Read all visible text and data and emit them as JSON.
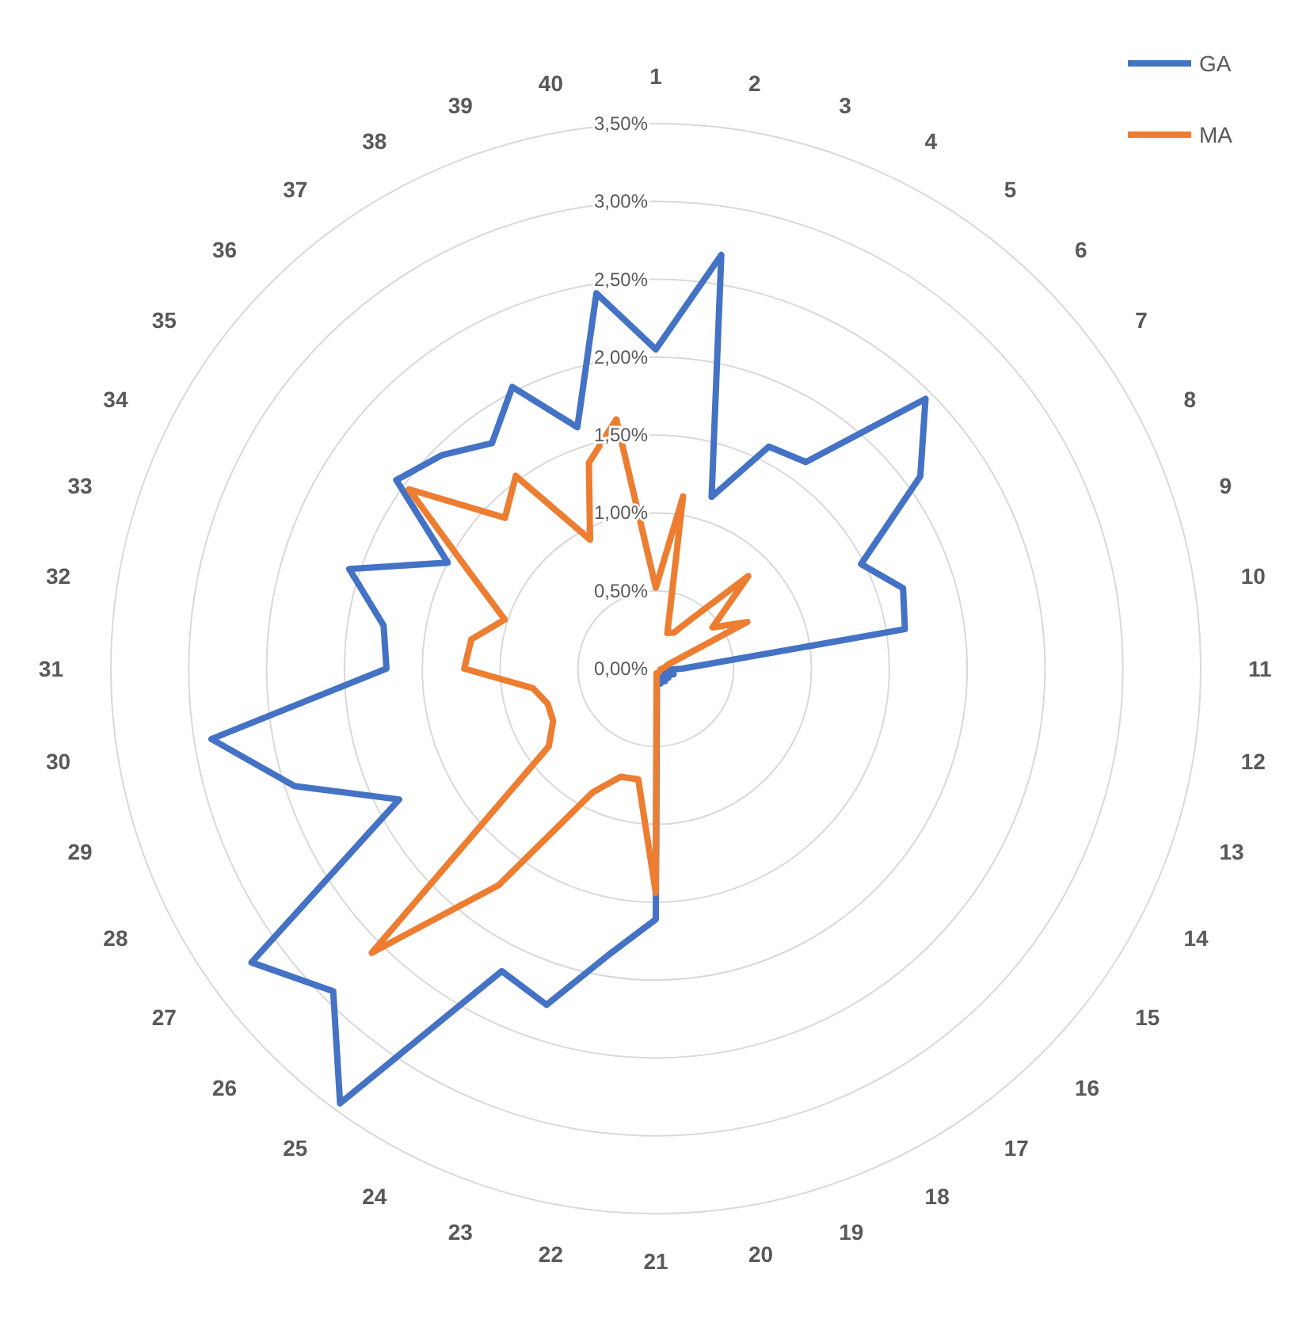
{
  "chart_data": {
    "type": "radar",
    "categories": [
      "1",
      "2",
      "3",
      "4",
      "5",
      "6",
      "7",
      "8",
      "9",
      "10",
      "11",
      "12",
      "13",
      "14",
      "15",
      "16",
      "17",
      "18",
      "19",
      "20",
      "21",
      "22",
      "23",
      "24",
      "25",
      "26",
      "27",
      "28",
      "29",
      "30",
      "31",
      "32",
      "33",
      "34",
      "35",
      "36",
      "37",
      "38",
      "39",
      "40"
    ],
    "ylim": [
      0,
      3.5
    ],
    "yticks": [
      {
        "value": 0,
        "label": "0,00%"
      },
      {
        "value": 0.5,
        "label": "0,50%"
      },
      {
        "value": 1,
        "label": "1,00%"
      },
      {
        "value": 1.5,
        "label": "1,50%"
      },
      {
        "value": 2,
        "label": "2,00%"
      },
      {
        "value": 2.5,
        "label": "2,50%"
      },
      {
        "value": 3,
        "label": "3,00%"
      },
      {
        "value": 3.5,
        "label": "3,50%"
      }
    ],
    "grid": true,
    "legend": "top right",
    "series": [
      {
        "name": "GA",
        "color": "#4472c4",
        "values": [
          2.05,
          2.69,
          1.16,
          1.6,
          1.64,
          2.45,
          2.1,
          1.48,
          1.67,
          1.62,
          0.17,
          0.06,
          0.12,
          0.05,
          0.1,
          0.05,
          0.1,
          0.05,
          0.1,
          0.05,
          1.61,
          1.85,
          2.27,
          2.18,
          3.45,
          2.93,
          3.21,
          1.85,
          2.44,
          2.89,
          1.73,
          1.77,
          2.07,
          1.5,
          2.06,
          1.94,
          1.79,
          2.03,
          1.63,
          2.44
        ]
      },
      {
        "name": "MA",
        "color": "#ed7d31",
        "values": [
          0.52,
          1.12,
          0.24,
          0.26,
          0.4,
          0.84,
          0.45,
          0.66,
          0.08,
          0.06,
          0.04,
          0.03,
          0.03,
          0.03,
          0.03,
          0.03,
          0.03,
          0.03,
          0.03,
          0.03,
          1.44,
          0.72,
          0.73,
          0.89,
          1.72,
          2.58,
          0.85,
          0.74,
          0.73,
          0.8,
          1.23,
          1.2,
          1.02,
          1.33,
          1.96,
          1.37,
          1.53,
          0.93,
          1.39,
          1.62
        ]
      }
    ]
  }
}
